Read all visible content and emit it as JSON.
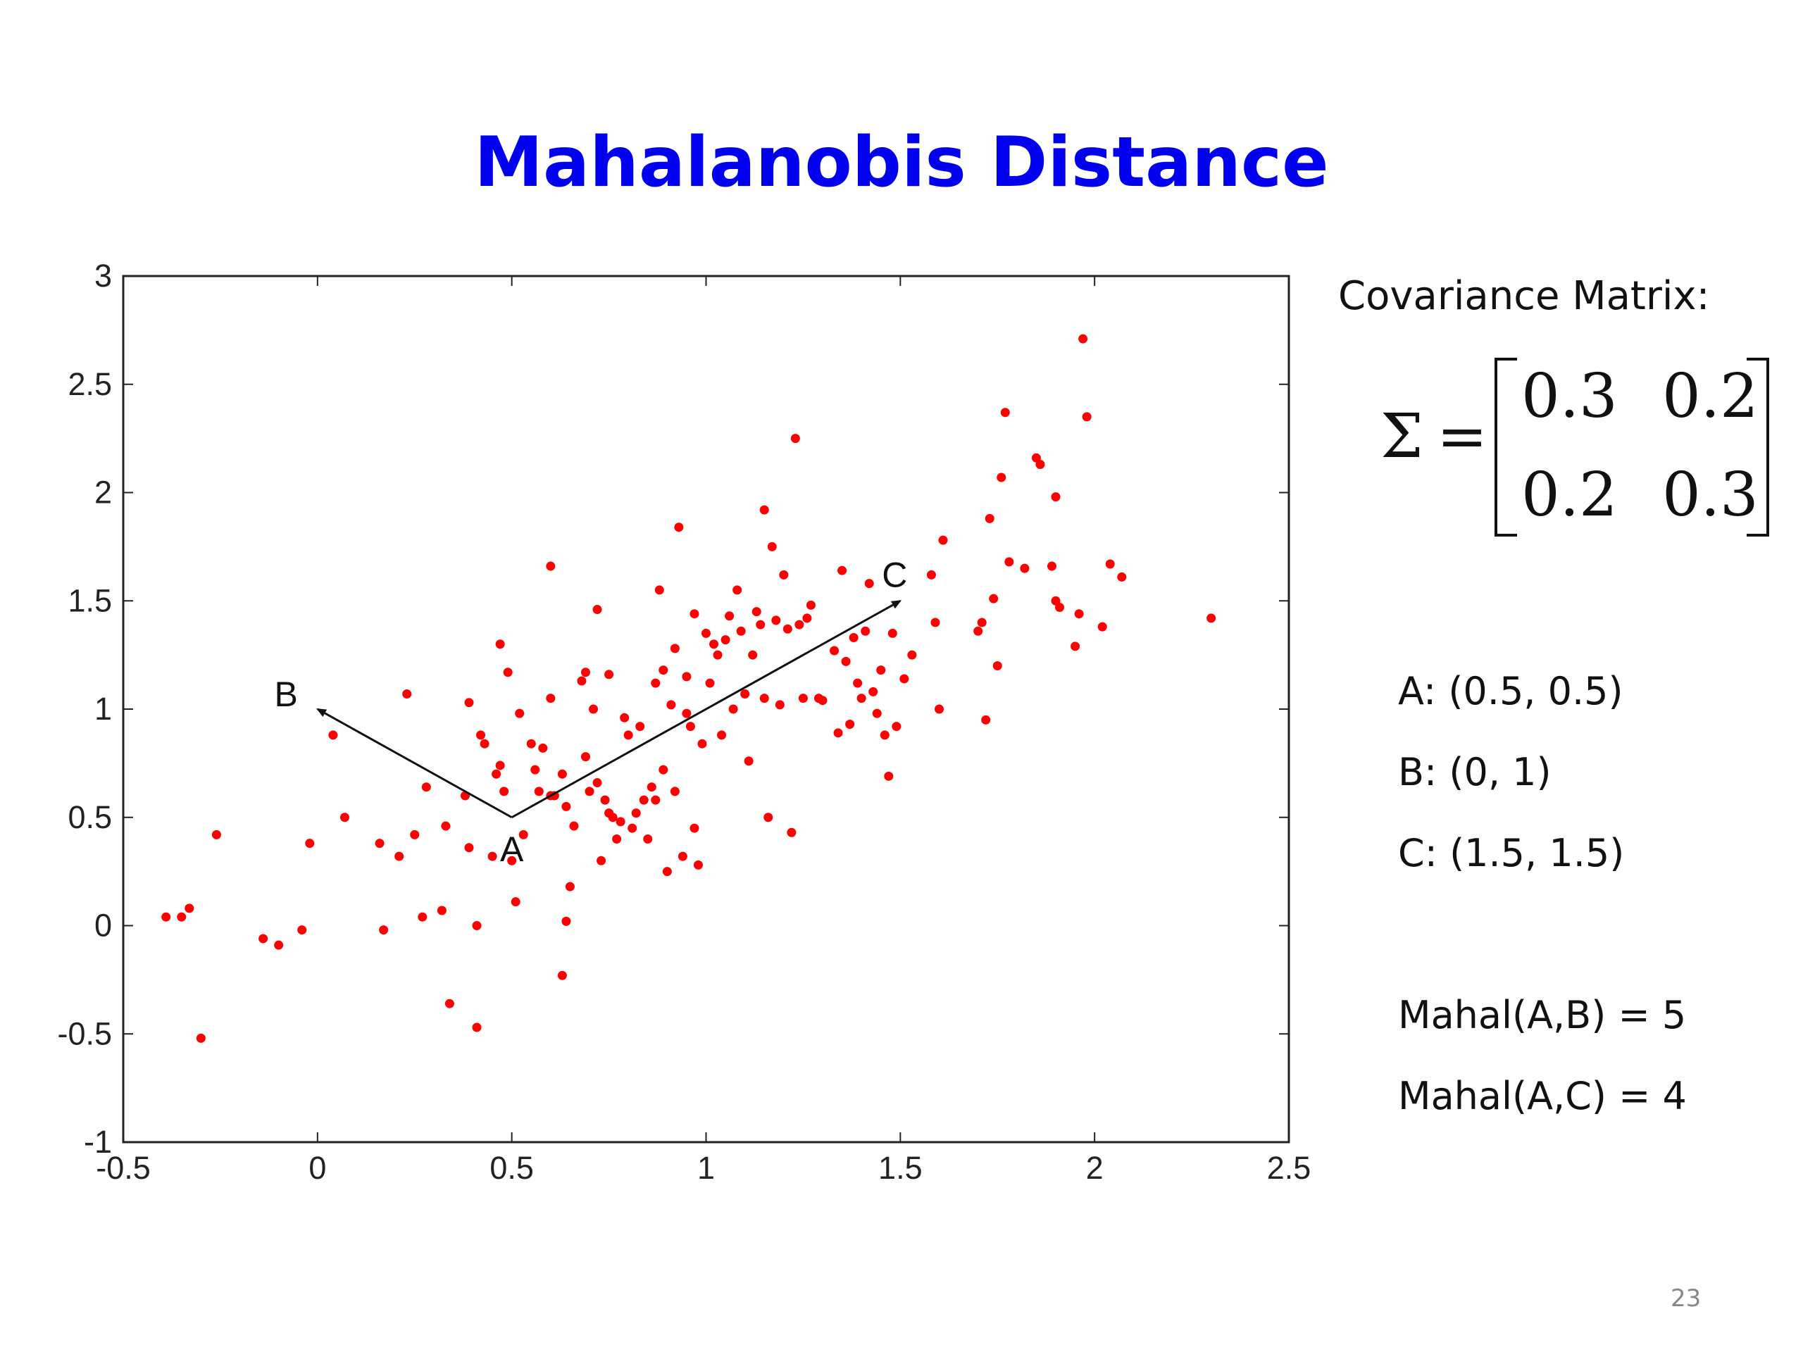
{
  "slide": {
    "title": "Mahalanobis Distance",
    "page_number": "23"
  },
  "covariance": {
    "heading": "Covariance Matrix:",
    "symbol": "Σ",
    "equals": "=",
    "matrix": [
      [
        "0.3",
        "0.2"
      ],
      [
        "0.2",
        "0.3"
      ]
    ]
  },
  "points_text": {
    "a": "A: (0.5, 0.5)",
    "b": "B: (0, 1)",
    "c": "C: (1.5, 1.5)"
  },
  "mahal_text": {
    "ab": "Mahal(A,B) = 5",
    "ac": "Mahal(A,C) = 4"
  },
  "chart_data": {
    "type": "scatter",
    "title": "",
    "xlabel": "",
    "ylabel": "",
    "xlim": [
      -0.5,
      2.5
    ],
    "ylim": [
      -1,
      3
    ],
    "xticks": [
      "-0.5",
      "0",
      "0.5",
      "1",
      "1.5",
      "2",
      "2.5"
    ],
    "yticks": [
      "-1",
      "-0.5",
      "0",
      "0.5",
      "1",
      "1.5",
      "2",
      "2.5",
      "3"
    ],
    "grid": false,
    "marker_color": "#ff0000",
    "annotations": [
      {
        "label": "A",
        "x": 0.5,
        "y": 0.5
      },
      {
        "label": "B",
        "x": 0,
        "y": 1
      },
      {
        "label": "C",
        "x": 1.5,
        "y": 1.5
      }
    ],
    "arrows": [
      {
        "from": "A",
        "to": "B"
      },
      {
        "from": "A",
        "to": "C"
      }
    ],
    "series": [
      {
        "points": [
          [
            -0.39,
            0.04
          ],
          [
            -0.35,
            0.04
          ],
          [
            -0.33,
            0.08
          ],
          [
            -0.3,
            -0.52
          ],
          [
            -0.26,
            0.42
          ],
          [
            -0.14,
            -0.06
          ],
          [
            -0.1,
            -0.09
          ],
          [
            -0.04,
            -0.02
          ],
          [
            -0.02,
            0.38
          ],
          [
            0.04,
            0.88
          ],
          [
            0.07,
            0.5
          ],
          [
            0.16,
            0.38
          ],
          [
            0.17,
            -0.02
          ],
          [
            0.21,
            0.32
          ],
          [
            0.23,
            1.07
          ],
          [
            0.25,
            0.42
          ],
          [
            0.27,
            0.04
          ],
          [
            0.28,
            0.64
          ],
          [
            0.32,
            0.07
          ],
          [
            0.33,
            0.46
          ],
          [
            0.34,
            -0.36
          ],
          [
            0.38,
            0.6
          ],
          [
            0.39,
            1.03
          ],
          [
            0.39,
            0.36
          ],
          [
            0.41,
            0.0
          ],
          [
            0.41,
            -0.47
          ],
          [
            0.42,
            0.88
          ],
          [
            0.43,
            0.84
          ],
          [
            0.45,
            0.32
          ],
          [
            0.46,
            0.7
          ],
          [
            0.47,
            0.74
          ],
          [
            0.47,
            1.3
          ],
          [
            0.48,
            0.62
          ],
          [
            0.49,
            1.17
          ],
          [
            0.5,
            0.3
          ],
          [
            0.51,
            0.11
          ],
          [
            0.52,
            0.98
          ],
          [
            0.53,
            0.42
          ],
          [
            0.55,
            0.84
          ],
          [
            0.56,
            0.72
          ],
          [
            0.57,
            0.62
          ],
          [
            0.58,
            0.82
          ],
          [
            0.6,
            1.66
          ],
          [
            0.6,
            1.05
          ],
          [
            0.61,
            0.6
          ],
          [
            0.63,
            -0.23
          ],
          [
            0.63,
            0.7
          ],
          [
            0.64,
            0.55
          ],
          [
            0.64,
            0.02
          ],
          [
            0.65,
            0.18
          ],
          [
            0.66,
            0.46
          ],
          [
            0.68,
            1.13
          ],
          [
            0.69,
            1.17
          ],
          [
            0.7,
            0.62
          ],
          [
            0.71,
            1.0
          ],
          [
            0.72,
            1.46
          ],
          [
            0.72,
            0.66
          ],
          [
            0.73,
            0.3
          ],
          [
            0.74,
            0.58
          ],
          [
            0.75,
            1.16
          ],
          [
            0.76,
            0.5
          ],
          [
            0.77,
            0.4
          ],
          [
            0.78,
            0.48
          ],
          [
            0.79,
            0.96
          ],
          [
            0.8,
            0.88
          ],
          [
            0.81,
            0.45
          ],
          [
            0.82,
            0.52
          ],
          [
            0.83,
            0.92
          ],
          [
            0.84,
            0.58
          ],
          [
            0.85,
            0.4
          ],
          [
            0.86,
            0.64
          ],
          [
            0.87,
            1.12
          ],
          [
            0.88,
            1.55
          ],
          [
            0.89,
            1.18
          ],
          [
            0.89,
            0.72
          ],
          [
            0.9,
            0.25
          ],
          [
            0.91,
            1.02
          ],
          [
            0.92,
            1.28
          ],
          [
            0.92,
            0.62
          ],
          [
            0.93,
            1.84
          ],
          [
            0.94,
            0.32
          ],
          [
            0.95,
            1.15
          ],
          [
            0.96,
            0.92
          ],
          [
            0.97,
            1.44
          ],
          [
            0.97,
            0.45
          ],
          [
            0.98,
            0.28
          ],
          [
            0.99,
            0.84
          ],
          [
            1.0,
            1.35
          ],
          [
            1.01,
            1.12
          ],
          [
            1.02,
            1.3
          ],
          [
            1.03,
            1.25
          ],
          [
            1.04,
            0.88
          ],
          [
            1.05,
            1.32
          ],
          [
            1.06,
            1.43
          ],
          [
            1.07,
            1.0
          ],
          [
            1.08,
            1.55
          ],
          [
            1.09,
            1.36
          ],
          [
            1.1,
            1.07
          ],
          [
            1.11,
            0.76
          ],
          [
            1.12,
            1.25
          ],
          [
            1.13,
            1.45
          ],
          [
            1.14,
            1.39
          ],
          [
            1.15,
            1.92
          ],
          [
            1.15,
            1.05
          ],
          [
            1.16,
            0.5
          ],
          [
            1.17,
            1.75
          ],
          [
            1.18,
            1.41
          ],
          [
            1.19,
            1.02
          ],
          [
            1.2,
            1.62
          ],
          [
            1.21,
            1.37
          ],
          [
            1.22,
            0.43
          ],
          [
            1.23,
            2.25
          ],
          [
            1.24,
            1.39
          ],
          [
            1.25,
            1.05
          ],
          [
            1.26,
            1.42
          ],
          [
            1.27,
            1.48
          ],
          [
            1.29,
            1.05
          ],
          [
            1.3,
            1.04
          ],
          [
            1.33,
            1.27
          ],
          [
            1.34,
            0.89
          ],
          [
            1.35,
            1.64
          ],
          [
            1.36,
            1.22
          ],
          [
            1.37,
            0.93
          ],
          [
            1.38,
            1.33
          ],
          [
            1.39,
            1.12
          ],
          [
            1.4,
            1.05
          ],
          [
            1.41,
            1.36
          ],
          [
            1.42,
            1.58
          ],
          [
            1.43,
            1.08
          ],
          [
            1.44,
            0.98
          ],
          [
            1.45,
            1.18
          ],
          [
            1.46,
            0.88
          ],
          [
            1.47,
            0.69
          ],
          [
            1.48,
            1.35
          ],
          [
            1.49,
            0.92
          ],
          [
            1.51,
            1.14
          ],
          [
            1.53,
            1.25
          ],
          [
            1.58,
            1.62
          ],
          [
            1.59,
            1.4
          ],
          [
            1.6,
            1.0
          ],
          [
            1.61,
            1.78
          ],
          [
            1.7,
            1.36
          ],
          [
            1.71,
            1.4
          ],
          [
            1.72,
            0.95
          ],
          [
            1.73,
            1.88
          ],
          [
            1.74,
            1.51
          ],
          [
            1.75,
            1.2
          ],
          [
            1.76,
            2.07
          ],
          [
            1.77,
            2.37
          ],
          [
            1.78,
            1.68
          ],
          [
            1.82,
            1.65
          ],
          [
            1.85,
            2.16
          ],
          [
            1.86,
            2.13
          ],
          [
            1.89,
            1.66
          ],
          [
            1.9,
            1.5
          ],
          [
            1.9,
            1.98
          ],
          [
            1.91,
            1.47
          ],
          [
            1.95,
            1.29
          ],
          [
            1.96,
            1.44
          ],
          [
            1.97,
            2.71
          ],
          [
            1.98,
            2.35
          ],
          [
            2.02,
            1.38
          ],
          [
            2.04,
            1.67
          ],
          [
            2.07,
            1.61
          ],
          [
            2.3,
            1.42
          ],
          [
            0.87,
            0.58
          ],
          [
            0.75,
            0.52
          ],
          [
            0.69,
            0.78
          ],
          [
            0.6,
            0.6
          ],
          [
            0.95,
            0.98
          ]
        ]
      }
    ]
  }
}
